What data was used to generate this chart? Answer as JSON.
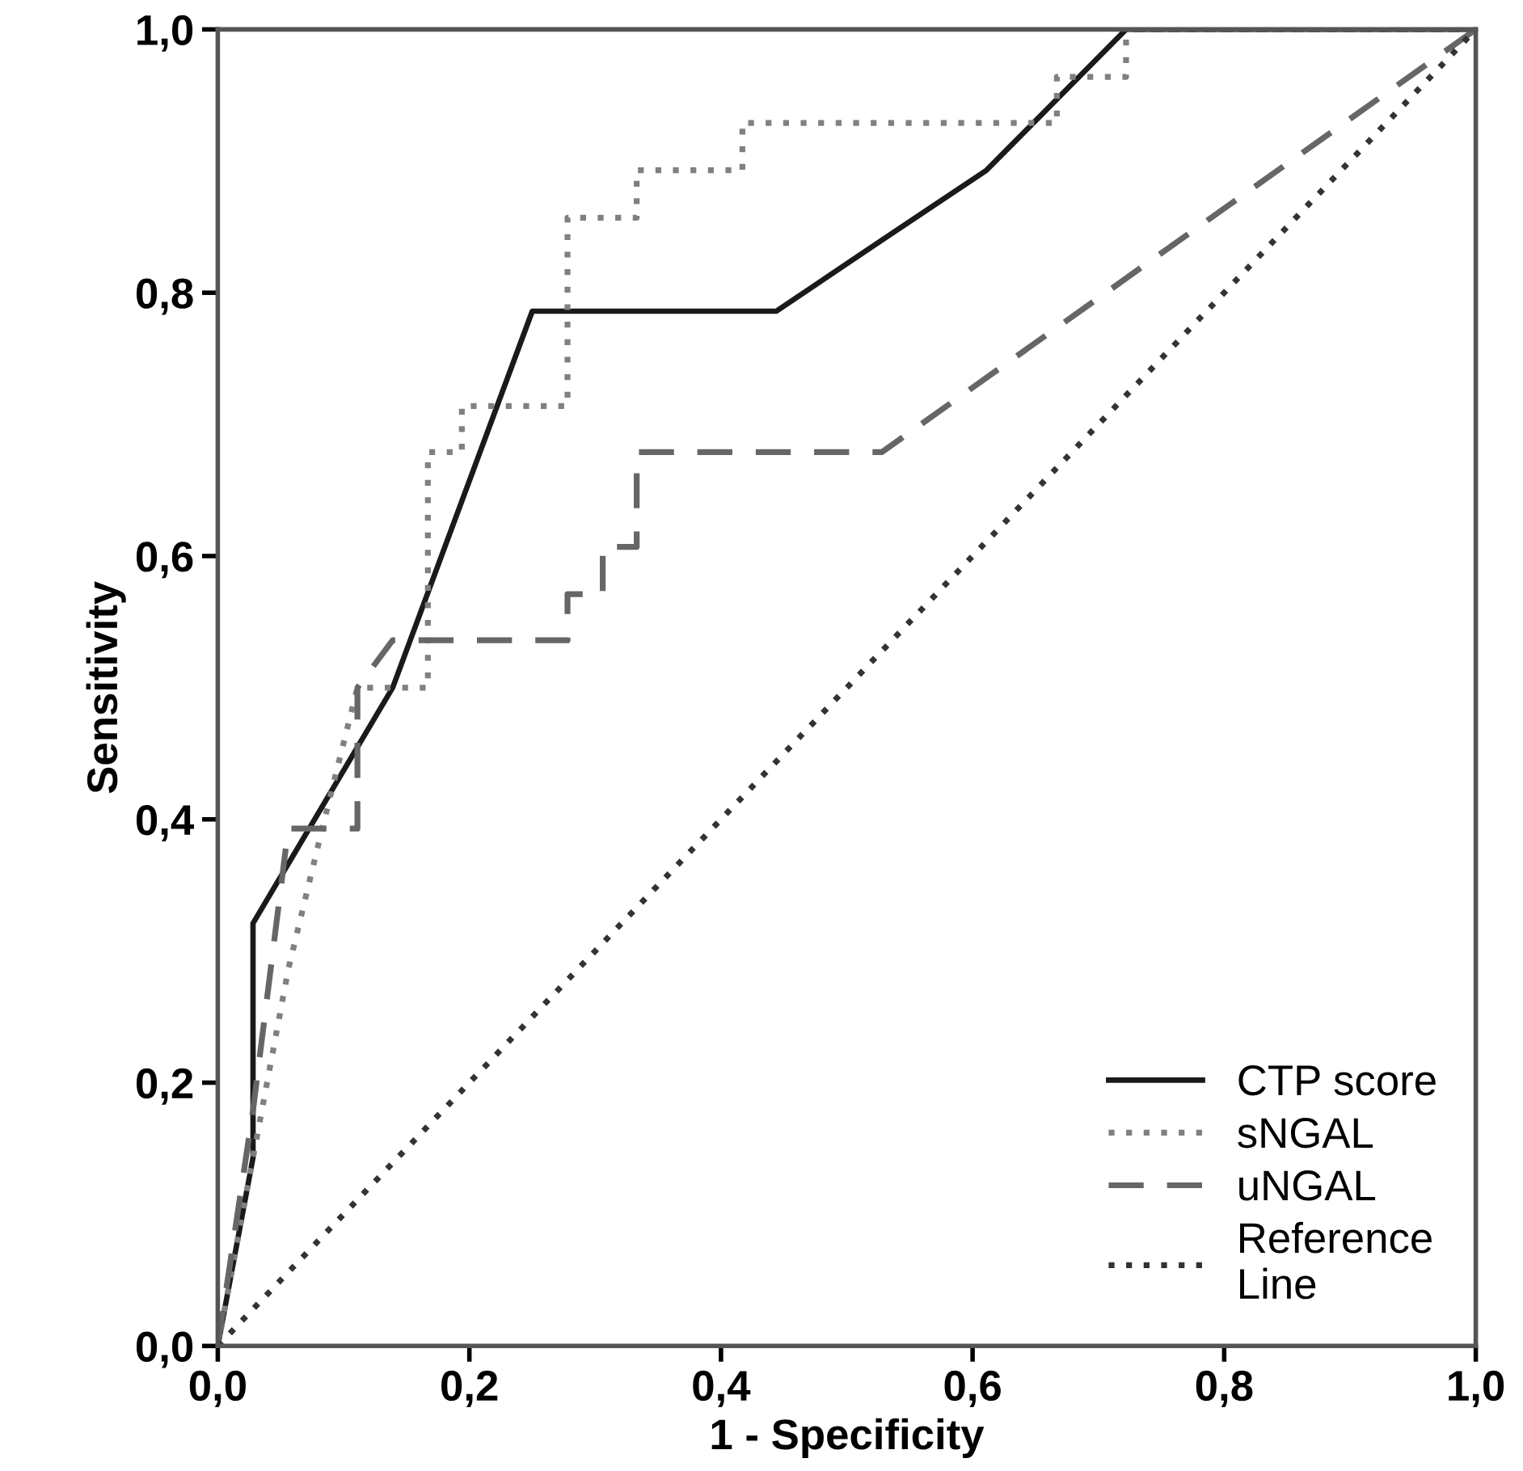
{
  "chart_data": {
    "type": "line",
    "xlabel": "1 - Specificity",
    "ylabel": "Sensitivity",
    "xlim": [
      0,
      1
    ],
    "ylim": [
      0,
      1
    ],
    "xticks": [
      {
        "value": 0,
        "label": "0,0"
      },
      {
        "value": 0.2,
        "label": "0,2"
      },
      {
        "value": 0.4,
        "label": "0,4"
      },
      {
        "value": 0.6,
        "label": "0,6"
      },
      {
        "value": 0.8,
        "label": "0,8"
      },
      {
        "value": 1,
        "label": "1,0"
      }
    ],
    "yticks": [
      {
        "value": 0,
        "label": "0,0"
      },
      {
        "value": 0.2,
        "label": "0,2"
      },
      {
        "value": 0.4,
        "label": "0,4"
      },
      {
        "value": 0.6,
        "label": "0,6"
      },
      {
        "value": 0.8,
        "label": "0,8"
      },
      {
        "value": 1,
        "label": "1,0"
      }
    ],
    "grid": false,
    "legend": "bottom right",
    "marker": "none",
    "series": [
      {
        "name": "CTP score",
        "color": "#1a1a1a",
        "line_style": "solid",
        "x": [
          0,
          0.028,
          0.028,
          0.139,
          0.25,
          0.444,
          0.528,
          0.611,
          0.722,
          1
        ],
        "values": [
          0,
          0.143,
          0.321,
          0.5,
          0.786,
          0.786,
          0.84,
          0.893,
          1,
          1
        ]
      },
      {
        "name": "sNGAL",
        "color": "#808080",
        "line_style": "dotted",
        "x": [
          0,
          0.028,
          0.056,
          0.083,
          0.111,
          0.167,
          0.167,
          0.194,
          0.194,
          0.278,
          0.278,
          0.333,
          0.333,
          0.417,
          0.417,
          0.667,
          0.667,
          0.722,
          0.722,
          1
        ],
        "values": [
          0,
          0.143,
          0.286,
          0.393,
          0.5,
          0.5,
          0.679,
          0.679,
          0.714,
          0.714,
          0.857,
          0.857,
          0.893,
          0.893,
          0.929,
          0.929,
          0.964,
          0.964,
          1,
          1
        ]
      },
      {
        "name": "uNGAL",
        "color": "#666666",
        "line_style": "dashed",
        "x": [
          0,
          0.028,
          0.056,
          0.111,
          0.111,
          0.139,
          0.278,
          0.278,
          0.306,
          0.306,
          0.333,
          0.333,
          0.528,
          1
        ],
        "values": [
          0,
          0.179,
          0.393,
          0.393,
          0.5,
          0.536,
          0.536,
          0.571,
          0.571,
          0.607,
          0.607,
          0.679,
          0.679,
          1
        ]
      },
      {
        "name": "Reference\nLine",
        "color": "#333333",
        "line_style": "dotted",
        "x": [
          0,
          1
        ],
        "values": [
          0,
          1
        ]
      }
    ]
  }
}
